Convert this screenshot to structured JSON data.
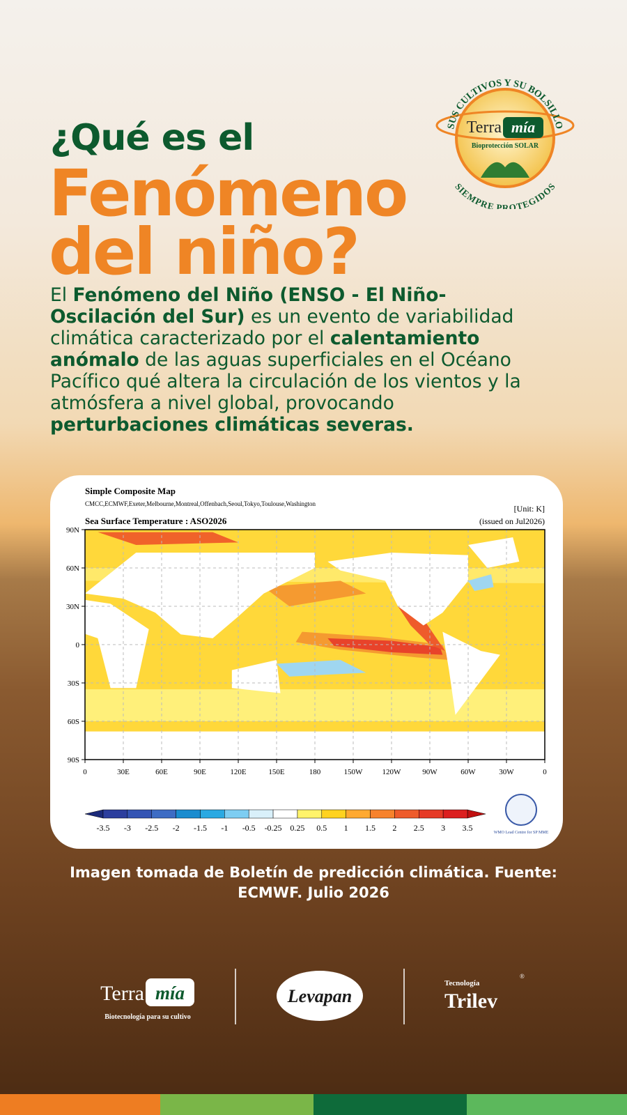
{
  "badge": {
    "top_text": "SUS CULTIVOS Y SU BOLSILLO",
    "brand_a": "Terra",
    "brand_b": "mía",
    "tagline": "Bioprotección SOLAR",
    "bottom_text": "SIEMPRE PROTEGIDOS"
  },
  "heading": {
    "line1": "¿Qué es el",
    "line2": "Fenómeno",
    "line3": "del niño?"
  },
  "paragraph": [
    {
      "text": "El ",
      "bold": false
    },
    {
      "text": "Fenómeno del Niño (ENSO - El Niño-Oscilación del Sur)",
      "bold": true
    },
    {
      "text": " es un evento de variabilidad climática caracterizado por el ",
      "bold": false
    },
    {
      "text": "calentamiento anómalo",
      "bold": true
    },
    {
      "text": " de las aguas superficiales en el Océano Pacífico qué altera la circulación de los vientos y la atmósfera a nivel global, provocando ",
      "bold": false
    },
    {
      "text": "perturbaciones climáticas severas.",
      "bold": true
    }
  ],
  "map": {
    "title": "Simple Composite Map",
    "centres": "CMCC,ECMWF,Exeter,Melbourne,Montreal,Offenbach,Seoul,Tokyo,Toulouse,Washington",
    "unit": "[Unit: K]",
    "variable": "Sea Surface Temperature : ASO2026",
    "issued": "(issued on Jul2026)",
    "lat_labels": [
      "90N",
      "60N",
      "30N",
      "0",
      "30S",
      "60S",
      "90S"
    ],
    "lon_labels": [
      "0",
      "30E",
      "60E",
      "90E",
      "120E",
      "150E",
      "180",
      "150W",
      "120W",
      "90W",
      "60W",
      "30W",
      "0"
    ],
    "colorbar_labels": [
      "-3.5",
      "-3",
      "-2.5",
      "-2",
      "-1.5",
      "-1",
      "-0.5",
      "-0.25",
      "0.25",
      "0.5",
      "1",
      "1.5",
      "2",
      "2.5",
      "3",
      "3.5"
    ],
    "wmo_note": "WMO Lead Centre for SP MME"
  },
  "caption": "Imagen tomada de Boletín de predicción climática. Fuente: ECMWF. Julio 2026",
  "footer": {
    "terra_a": "Terra",
    "terra_b": "mía",
    "terra_tagline": "Biotecnología para su cultivo",
    "levapan": "Levapan",
    "trilev_top": "Tecnología",
    "trilev": "Trilev",
    "trilev_mark": "®"
  }
}
